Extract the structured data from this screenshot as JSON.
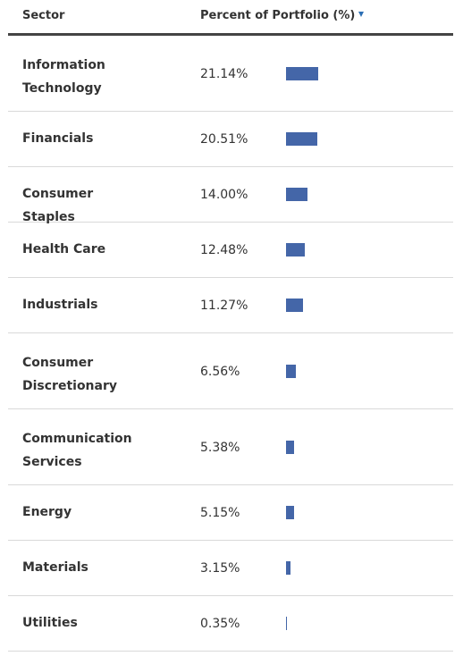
{
  "table": {
    "headers": {
      "sector": "Sector",
      "percent": "Percent of Portfolio (%)"
    }
  },
  "colors": {
    "bar": "#4466a8",
    "sort_arrow": "#2c6fb5",
    "divider": "#d9d9d9",
    "header_rule": "#444444"
  },
  "icons": {
    "sort": "sort-descending-triangle-icon"
  },
  "chart_data": {
    "type": "bar",
    "orientation": "horizontal",
    "categories": [
      "Information Technology",
      "Financials",
      "Consumer Staples",
      "Health Care",
      "Industrials",
      "Consumer Discretionary",
      "Communication Services",
      "Energy",
      "Materials",
      "Utilities"
    ],
    "values": [
      21.14,
      20.51,
      14.0,
      12.48,
      11.27,
      6.56,
      5.38,
      5.15,
      3.15,
      0.35
    ],
    "labels": [
      "21.14%",
      "20.51%",
      "14.00%",
      "12.48%",
      "11.27%",
      "6.56%",
      "5.38%",
      "5.15%",
      "3.15%",
      "0.35%"
    ],
    "title": "",
    "xlabel": "Percent of Portfolio (%)",
    "ylabel": "Sector",
    "sort": "descending",
    "grid": false
  }
}
